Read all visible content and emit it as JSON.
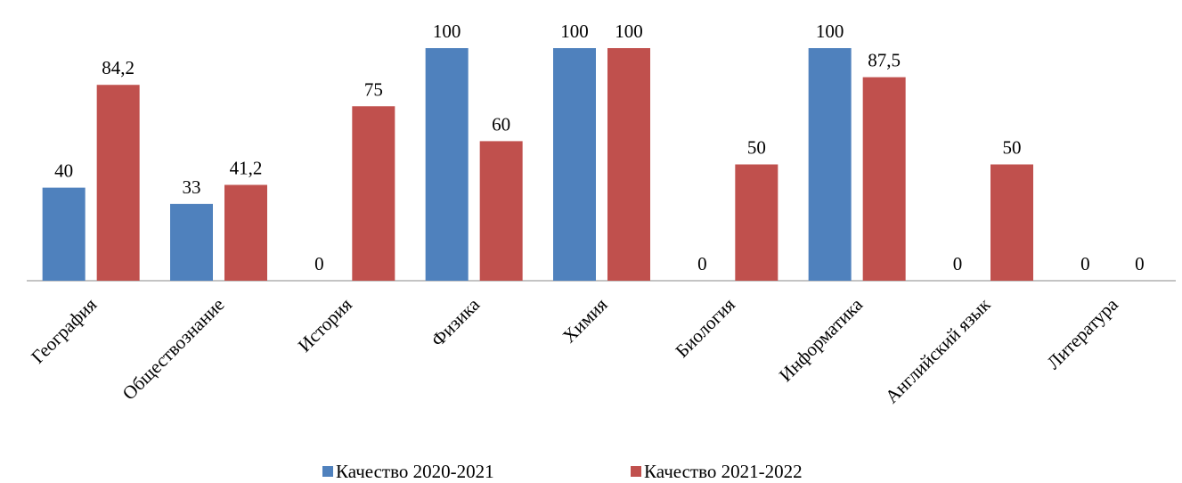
{
  "chart_data": {
    "type": "bar",
    "categories": [
      "География",
      "Обществознание",
      "История",
      "Физика",
      "Химия",
      "Биология",
      "Информатика",
      "Английский язык",
      "Литература"
    ],
    "series": [
      {
        "name": "Качество 2020-2021",
        "color": "#4f81bd",
        "values": [
          40,
          33,
          0,
          100,
          100,
          0,
          100,
          0,
          0
        ],
        "value_labels": [
          "40",
          "33",
          "0",
          "100",
          "100",
          "0",
          "100",
          "0",
          "0"
        ]
      },
      {
        "name": "Качество 2021-2022",
        "color": "#c0504d",
        "values": [
          84.2,
          41.2,
          75,
          60,
          100,
          50,
          87.5,
          50,
          0
        ],
        "value_labels": [
          "84,2",
          "41,2",
          "75",
          "60",
          "100",
          "50",
          "87,5",
          "50",
          "0"
        ]
      }
    ],
    "ylim": [
      0,
      100
    ],
    "legend": "bottom"
  }
}
